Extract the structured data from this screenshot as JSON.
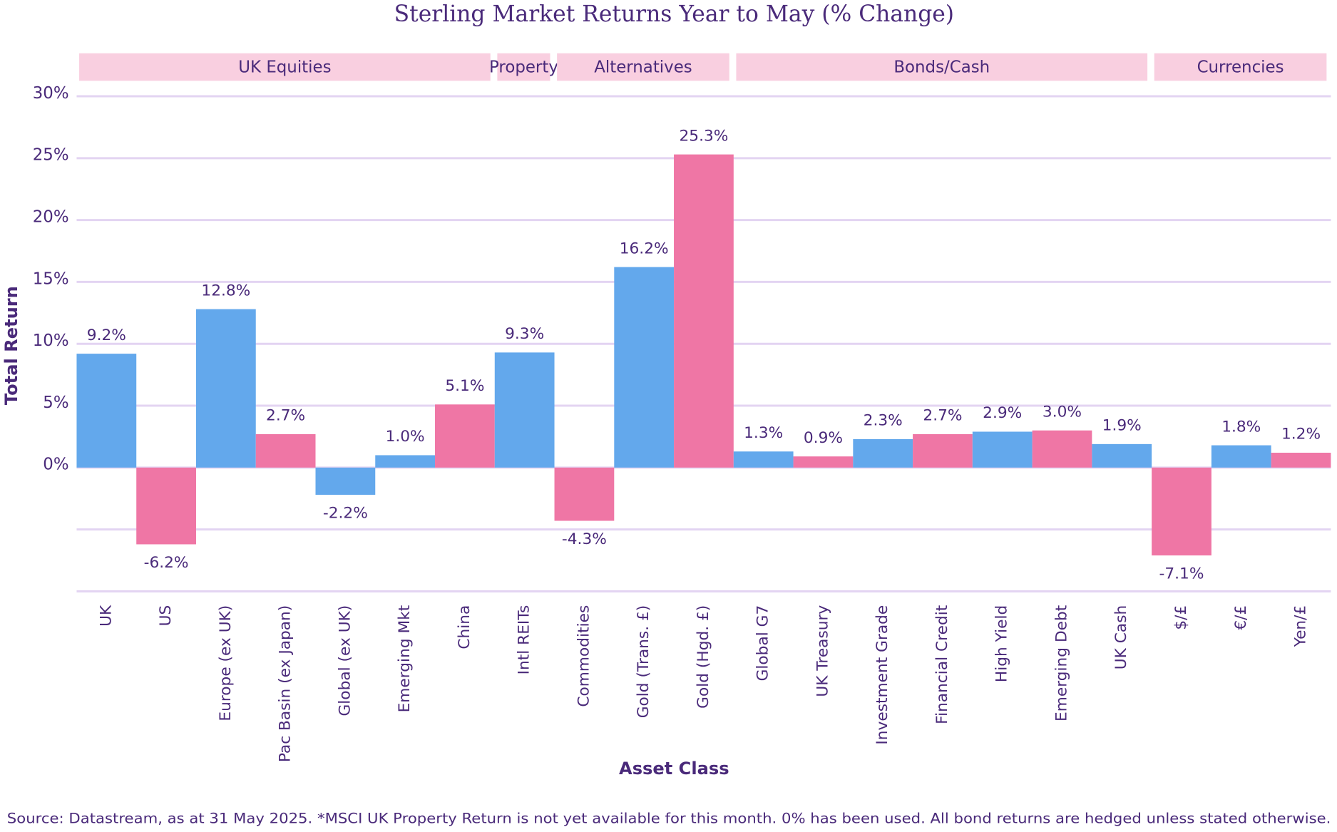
{
  "chart_data": {
    "type": "bar",
    "title": "Sterling Market Returns Year to May (% Change)",
    "x_label": "Asset Class",
    "y_label": "Total Return",
    "source": "Source: Datastream, as at 31 May 2025. *MSCI UK Property Return is not yet available for this month. 0% has been used. All bond returns are hedged unless stated otherwise.",
    "categories": [
      "UK",
      "US",
      "Europe (ex UK)",
      "Pac Basin (ex Japan)",
      "Global (ex UK)",
      "Emerging Mkt",
      "China",
      "Intl REITs",
      "Commodities",
      "Gold (Trans. £)",
      "Gold (Hgd. £)",
      "Global G7",
      "UK Treasury",
      "Investment Grade",
      "Financial Credit",
      "High Yield",
      "Emerging Debt",
      "UK Cash",
      "$/£",
      "€/£",
      "Yen/£"
    ],
    "values": [
      9.2,
      -6.2,
      12.8,
      2.7,
      -2.2,
      1.0,
      5.1,
      9.3,
      -4.3,
      16.2,
      25.3,
      1.3,
      0.9,
      2.3,
      2.7,
      2.9,
      3.0,
      1.9,
      -7.1,
      1.8,
      1.2
    ],
    "value_labels": [
      "9.2%",
      "-6.2%",
      "12.8%",
      "2.7%",
      "-2.2%",
      "1.0%",
      "5.1%",
      "9.3%",
      "-4.3%",
      "16.2%",
      "25.3%",
      "1.3%",
      "0.9%",
      "2.3%",
      "2.7%",
      "2.9%",
      "3.0%",
      "1.9%",
      "-7.1%",
      "1.8%",
      "1.2%"
    ],
    "colors": [
      "#63a8ec",
      "#ef76a5",
      "#63a8ec",
      "#ef76a5",
      "#63a8ec",
      "#63a8ec",
      "#ef76a5",
      "#63a8ec",
      "#ef76a5",
      "#63a8ec",
      "#ef76a5",
      "#63a8ec",
      "#ef76a5",
      "#63a8ec",
      "#ef76a5",
      "#63a8ec",
      "#ef76a5",
      "#63a8ec",
      "#ef76a5",
      "#63a8ec",
      "#ef76a5"
    ],
    "groups": [
      {
        "label": "UK Equities",
        "first": 0,
        "last": 6
      },
      {
        "label": "Property",
        "first": 7,
        "last": 7
      },
      {
        "label": "Alternatives",
        "first": 8,
        "last": 10
      },
      {
        "label": "Bonds/Cash",
        "first": 11,
        "last": 17
      },
      {
        "label": "Currencies",
        "first": 18,
        "last": 20
      }
    ],
    "ylim": [
      -10,
      30
    ],
    "yticks": [
      {
        "value": 30,
        "label": "30%"
      },
      {
        "value": 25,
        "label": "25%"
      },
      {
        "value": 20,
        "label": "20%"
      },
      {
        "value": 15,
        "label": "15%"
      },
      {
        "value": 10,
        "label": "10%"
      },
      {
        "value": 5,
        "label": "5%"
      },
      {
        "value": 0,
        "label": "0%"
      }
    ],
    "ygrid": [
      30,
      25,
      20,
      15,
      10,
      5,
      0,
      -5,
      -10
    ],
    "grid": true
  }
}
